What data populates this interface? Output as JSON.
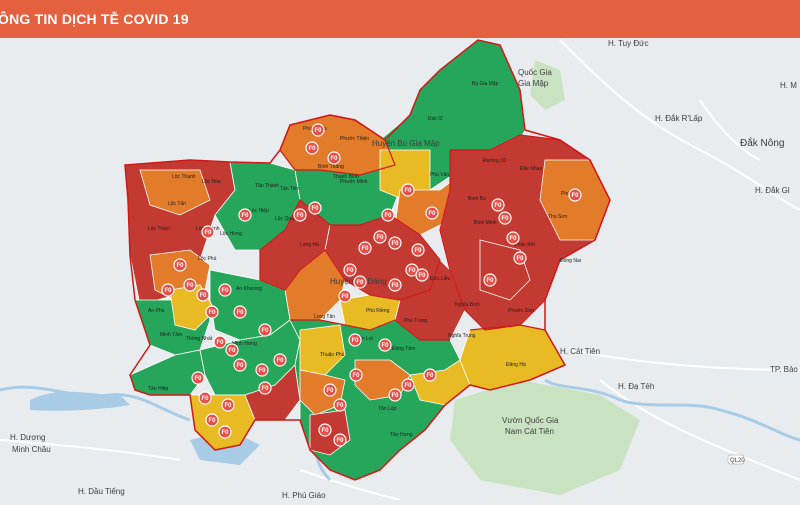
{
  "header": {
    "title": "ÔNG TIN DỊCH TỄ COVID 19"
  },
  "colors": {
    "header_bg": "#e5603f",
    "red": "#c23a32",
    "orange": "#e27b2a",
    "yellow": "#e8bb25",
    "green": "#26a65b",
    "border": "#d01818",
    "base_map": "#e9ecef",
    "river": "#a9cce6",
    "park": "#c9e3c2"
  },
  "map": {
    "base_labels": [
      {
        "id": "h-tuy-duc",
        "text": "H. Tuy Đức"
      },
      {
        "id": "quoc-gia-1",
        "text": "Quốc Gia"
      },
      {
        "id": "gia-map",
        "text": "Gia Mập"
      },
      {
        "id": "h-dak-rlap",
        "text": "H. Đắk R'Lấp"
      },
      {
        "id": "dak-nong",
        "text": "Đắk Nông"
      },
      {
        "id": "h-dak-g",
        "text": "H. Đắk Gl"
      },
      {
        "id": "h-cat-tien",
        "text": "H. Cát Tiên"
      },
      {
        "id": "tp-bao",
        "text": "TP. Bảo"
      },
      {
        "id": "h-da-teh",
        "text": "H. Đạ Tẻh"
      },
      {
        "id": "vuon-qg-1",
        "text": "Vườn Quốc Gia"
      },
      {
        "id": "vuon-qg-2",
        "text": "Nam Cát Tiên"
      },
      {
        "id": "h-duong",
        "text": "H. Dương"
      },
      {
        "id": "minh-chau",
        "text": "Minh Châu"
      },
      {
        "id": "h-dau-tieng",
        "text": "H. Dầu Tiếng"
      },
      {
        "id": "h-phu-giao",
        "text": "H. Phú Giáo"
      },
      {
        "id": "h-m",
        "text": "H. M"
      },
      {
        "id": "ql20",
        "text": "QL20"
      }
    ],
    "district_labels": [
      {
        "id": "huyen-bu-gia-map",
        "text": "Huyện Bù Gia Mập"
      },
      {
        "id": "huyen-bu-dang",
        "text": "Huyện Bù Đăng"
      }
    ],
    "commune_labels": [
      "Phú Nghĩa",
      "Phước Thiện",
      "Đak Ơ",
      "Bù Gia Mập",
      "Bình Thắng",
      "Thanh Bình",
      "Phước Minh",
      "Phú Văn",
      "Lộc Thạnh",
      "Lộc Hòa",
      "Lộc Tấn",
      "Lộc Thiện",
      "Lộc Thành",
      "Lộc Hưng",
      "Lộc Phú",
      "Lộc Hiệp",
      "Lộc Quang",
      "Tân Thành",
      "Tân Tiến",
      "Bình Minh",
      "Đoàn Kết",
      "Đức Liễu",
      "Đồng Nai",
      "Đăk Nhau",
      "Bom Bo",
      "Nghĩa Trung",
      "Long Hà",
      "Long Tân",
      "Phú Riềng",
      "Phú Trung",
      "Thống Nhất",
      "Minh Hưng",
      "Đồng Tâm",
      "Tân Lập",
      "Tân Hưng",
      "Tân Hiệp",
      "An Khương",
      "An Phú",
      "Minh Tâm",
      "Thuận Phú",
      "Tân Lợi",
      "Phước Sơn",
      "Thọ Sơn",
      "Phú Sơn",
      "Đường 10",
      "Nghĩa Bình",
      "Đăng Hà"
    ],
    "marker_label": "F0"
  }
}
